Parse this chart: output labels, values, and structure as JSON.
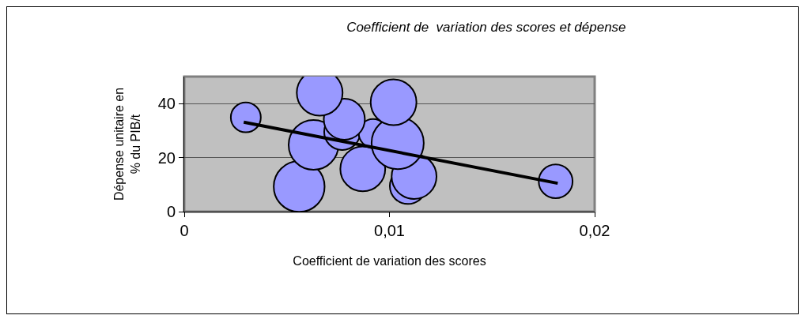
{
  "chart_data": {
    "type": "bubble",
    "title": "Coefficient de  variation des scores et dépense",
    "xlabel": "Coefficient de variation des scores",
    "ylabel": "Dépense unitaire en\n% du PIB/t",
    "xlim": [
      0,
      0.02
    ],
    "xticks": [
      0,
      {
        "value": 0.01,
        "label": "0,01"
      },
      {
        "value": 0.02,
        "label": "0,02"
      }
    ],
    "ylim": [
      0,
      50
    ],
    "yticks": [
      0,
      20,
      40
    ],
    "grid": "y",
    "series": [
      {
        "color": "#9999ff",
        "x": [
          0.0109,
          0.0056,
          0.0087,
          0.0112,
          0.0063,
          0.0077,
          0.0092,
          0.0078,
          0.0104,
          0.0102,
          0.0066,
          0.003,
          0.0181
        ],
        "values": [
          9.5,
          9.3,
          15.8,
          13,
          24.7,
          29.5,
          29,
          34.2,
          25.4,
          40.5,
          44,
          34.9,
          11.2
        ],
        "sizes": [
          0.48,
          0.95,
          0.74,
          0.74,
          0.91,
          0.48,
          0.3,
          0.62,
          1,
          0.77,
          0.77,
          0.33,
          0.42
        ]
      },
      {
        "type": "line",
        "color": "#000000",
        "x": [
          0.0029,
          0.0182
        ],
        "values": [
          33.1,
          10.5
        ],
        "marker": "none"
      }
    ]
  }
}
